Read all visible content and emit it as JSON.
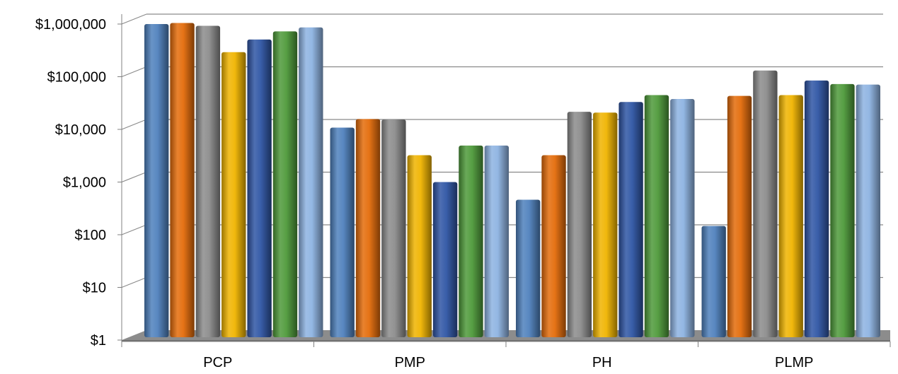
{
  "chart_data": {
    "type": "bar",
    "title": "",
    "xlabel": "",
    "ylabel": "",
    "y_scale": "log",
    "ylim": [
      1,
      1000000
    ],
    "grid": true,
    "legend": "none",
    "y_tick_values": [
      1,
      10,
      100,
      1000,
      10000,
      100000,
      1000000
    ],
    "y_tick_labels": [
      "$1",
      "$10",
      "$100",
      "$1,000",
      "$10,000",
      "$100,000",
      "$1,000,000"
    ],
    "categories": [
      "PCP",
      "PMP",
      "PH",
      "PLMP"
    ],
    "series": [
      {
        "color": "#4F81BD",
        "values": [
          650000,
          7000,
          300,
          95
        ]
      },
      {
        "color": "#E46C0A",
        "values": [
          680000,
          10200,
          2100,
          28000
        ]
      },
      {
        "color": "#8C8C8C",
        "values": [
          600000,
          10000,
          14000,
          85000
        ]
      },
      {
        "color": "#F0B400",
        "values": [
          190000,
          2100,
          13500,
          29000
        ]
      },
      {
        "color": "#2F55A4",
        "values": [
          330000,
          650,
          21500,
          55000
        ]
      },
      {
        "color": "#4E9A3A",
        "values": [
          470000,
          3200,
          29000,
          47000
        ]
      },
      {
        "color": "#8DB3E2",
        "values": [
          560000,
          3200,
          24500,
          46000
        ]
      }
    ]
  }
}
